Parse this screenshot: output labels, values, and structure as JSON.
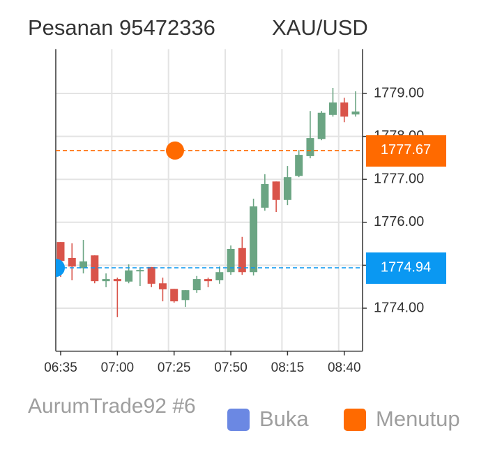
{
  "chart_data": {
    "type": "candlestick",
    "title": "Pesanan 95472336",
    "symbol": "XAU/USD",
    "categories": [
      "06:35",
      null,
      null,
      null,
      null,
      "07:00",
      null,
      null,
      null,
      null,
      "07:25",
      null,
      null,
      null,
      null,
      "07:50",
      null,
      null,
      null,
      null,
      "08:15",
      null,
      null,
      null,
      null,
      "08:40",
      null
    ],
    "open": [
      1775.54,
      1775.17,
      1774.93,
      1775.23,
      1774.63,
      1774.68,
      1774.62,
      1774.86,
      1774.96,
      1774.58,
      1774.45,
      1774.19,
      1774.42,
      1774.68,
      1774.65,
      1774.84,
      1775.4,
      1774.84,
      1776.34,
      1776.95,
      1776.52,
      1777.08,
      1777.54,
      1777.94,
      1778.5,
      1778.79,
      1778.51
    ],
    "high": [
      1775.54,
      1775.51,
      1775.59,
      1775.23,
      1774.81,
      1774.71,
      1775.02,
      1774.93,
      1774.96,
      1774.71,
      1774.45,
      1774.42,
      1774.75,
      1774.71,
      1774.97,
      1775.46,
      1775.66,
      1776.55,
      1777.12,
      1776.95,
      1777.31,
      1777.68,
      1778.59,
      1778.59,
      1779.13,
      1778.9,
      1779.05
    ],
    "low": [
      1774.73,
      1774.65,
      1774.81,
      1774.58,
      1774.49,
      1773.79,
      1774.58,
      1774.52,
      1774.49,
      1774.16,
      1774.13,
      1774.03,
      1774.36,
      1774.49,
      1774.57,
      1774.78,
      1774.78,
      1774.76,
      1776.27,
      1776.24,
      1776.4,
      1777.05,
      1777.49,
      1777.91,
      1778.46,
      1778.33,
      1778.46
    ],
    "close": [
      1775.1,
      1774.97,
      1775.09,
      1774.63,
      1774.68,
      1774.63,
      1774.88,
      1774.89,
      1774.57,
      1774.44,
      1774.16,
      1774.42,
      1774.68,
      1774.63,
      1774.84,
      1775.38,
      1774.84,
      1776.37,
      1776.89,
      1776.52,
      1777.05,
      1777.57,
      1777.96,
      1778.55,
      1778.79,
      1778.46,
      1778.58
    ],
    "up_color": "#6ba583",
    "down_color": "#d9544a",
    "ylim": [
      1773,
      1780
    ],
    "yticks": [
      {
        "value": 1774,
        "label": "1774.00"
      },
      {
        "value": 1775,
        "label": "1775.00"
      },
      {
        "value": 1776,
        "label": "1776.00"
      },
      {
        "value": 1777,
        "label": "1777.00"
      },
      {
        "value": 1778,
        "label": "1778.00"
      },
      {
        "value": 1779,
        "label": "1779.00"
      }
    ],
    "grid": true,
    "open_price": 1774.94,
    "open_color": "#0a98f2",
    "close_price": 1777.67,
    "close_color": "#ff6a00",
    "legend": [
      {
        "name": "Buka",
        "color": "#6b88e3"
      },
      {
        "name": "Menutup",
        "color": "#ff6a00"
      }
    ],
    "account": "AurumTrade92 #6"
  }
}
